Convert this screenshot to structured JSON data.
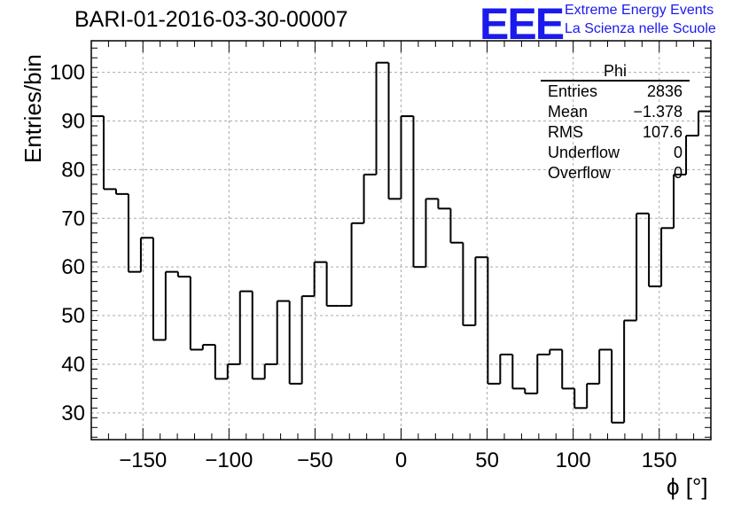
{
  "chart_data": {
    "type": "histogram",
    "title": "BARI-01-2016-03-30-00007",
    "xlabel": "ϕ [°]",
    "ylabel": "Entries/bin",
    "xlim": [
      -180,
      180
    ],
    "ylim": [
      24.5,
      106.5
    ],
    "bin_width": 7.2,
    "grid": true,
    "x_ticks": [
      -150,
      -100,
      -50,
      0,
      50,
      100,
      150
    ],
    "y_ticks": [
      30,
      40,
      50,
      60,
      70,
      80,
      90,
      100
    ],
    "values": [
      91,
      76,
      75,
      59,
      66,
      45,
      59,
      58,
      43,
      44,
      37,
      40,
      55,
      37,
      40,
      53,
      36,
      54,
      61,
      52,
      52,
      69,
      79,
      102,
      74,
      91,
      60,
      74,
      72,
      65,
      48,
      62,
      36,
      42,
      35,
      34,
      42,
      43,
      35,
      31,
      36,
      43,
      28,
      49,
      71,
      56,
      68,
      79,
      87,
      92
    ],
    "stats_box": {
      "title": "Phi",
      "rows": [
        {
          "label": "Entries",
          "value": "2836"
        },
        {
          "label": "Mean",
          "value": "−1.378"
        },
        {
          "label": "RMS",
          "value": "107.6"
        },
        {
          "label": "Underflow",
          "value": "0"
        },
        {
          "label": "Overflow",
          "value": "0"
        }
      ]
    }
  },
  "logo": {
    "mark": "EEE",
    "line1": "Extreme Energy Events",
    "line2": "La Scienza nelle Scuole",
    "color": "#1a1aee"
  }
}
